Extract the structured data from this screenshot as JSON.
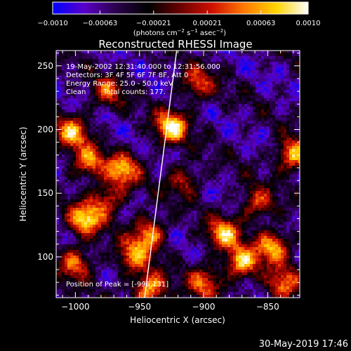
{
  "chart_data": {
    "type": "heatmap",
    "title": "Reconstructed RHESSI Image",
    "xlabel": "Heliocentric X (arcsec)",
    "ylabel": "Heliocentric Y (arcsec)",
    "xlim": [
      -1015,
      -825
    ],
    "ylim": [
      68,
      262
    ],
    "x_ticks": [
      -1000,
      -950,
      -900,
      -850
    ],
    "y_ticks": [
      100,
      150,
      200,
      250
    ],
    "x_tick_labels": [
      "−1000",
      "−950",
      "−900",
      "−850"
    ],
    "y_tick_labels": [
      "100",
      "150",
      "200",
      "250"
    ],
    "colorbar": {
      "range": [
        -0.001,
        0.001
      ],
      "tick_values": [
        -0.001,
        -0.00063,
        -0.00021,
        0.00021,
        0.00063,
        0.001
      ],
      "tick_labels": [
        "−0.0010",
        "−0.00063",
        "−0.00021",
        "0.00021",
        "0.00063",
        "0.0010"
      ],
      "label_main": "(photons cm",
      "label_sup1": "−2",
      "label_mid1": " s",
      "label_sup2": "−1",
      "label_mid2": " asec",
      "label_sup3": "−2",
      "label_end": ")",
      "stops": [
        "#0000ff",
        "#5a00c8",
        "#2a004a",
        "#000000",
        "#6a0000",
        "#d01000",
        "#ff7a00",
        "#ffd500",
        "#ffffff"
      ]
    },
    "annotations": [
      "19-May-2002 12:31:40.000 to 12:31:56.000",
      "Detectors: 3F 4F 5F 6F 7F 8F, Att 0",
      "Energy Range: 25.0 - 50.0 keV",
      "Clean",
      "Total counts: 177."
    ],
    "peak_label": "Position of Peak = [-996,131]",
    "limb_line": {
      "x": [
        -946,
        -921
      ],
      "y": [
        68,
        262
      ]
    },
    "hot_spots": [
      {
        "x": -925,
        "y": 202,
        "v": 1.0
      },
      {
        "x": -992,
        "y": 130,
        "v": 0.95
      },
      {
        "x": -1003,
        "y": 198,
        "v": 0.8
      },
      {
        "x": -990,
        "y": 175,
        "v": 0.75
      },
      {
        "x": -963,
        "y": 168,
        "v": 0.85
      },
      {
        "x": -943,
        "y": 118,
        "v": 0.8
      },
      {
        "x": -955,
        "y": 100,
        "v": 0.7
      },
      {
        "x": -942,
        "y": 75,
        "v": 0.9
      },
      {
        "x": -884,
        "y": 118,
        "v": 0.85
      },
      {
        "x": -870,
        "y": 95,
        "v": 0.9
      },
      {
        "x": -846,
        "y": 108,
        "v": 0.85
      },
      {
        "x": -830,
        "y": 180,
        "v": 0.9
      },
      {
        "x": -858,
        "y": 142,
        "v": 0.6
      },
      {
        "x": -905,
        "y": 236,
        "v": 0.6
      },
      {
        "x": -975,
        "y": 230,
        "v": 0.55
      },
      {
        "x": -915,
        "y": 160,
        "v": 0.5
      },
      {
        "x": -1000,
        "y": 95,
        "v": 0.7
      },
      {
        "x": -975,
        "y": 145,
        "v": 0.6
      },
      {
        "x": -900,
        "y": 80,
        "v": 0.65
      },
      {
        "x": -838,
        "y": 78,
        "v": 0.75
      }
    ]
  },
  "timestamp": "30-May-2019 17:46"
}
